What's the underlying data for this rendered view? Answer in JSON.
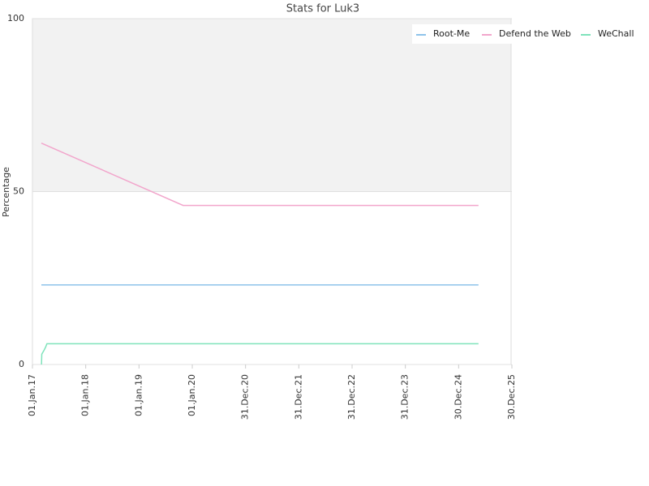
{
  "chart_data": {
    "type": "line",
    "title": "Stats for Luk3",
    "y_label": "Percentage",
    "xlim": [
      "2017-01-01",
      "2025-12-30"
    ],
    "xticks": [
      {
        "value": "2017-01-01",
        "label": "01.Jan.17"
      },
      {
        "value": "2018-01-01",
        "label": "01.Jan.18"
      },
      {
        "value": "2019-01-01",
        "label": "01.Jan.19"
      },
      {
        "value": "2020-01-01",
        "label": "01.Jan.20"
      },
      {
        "value": "2020-12-31",
        "label": "31.Dec.20"
      },
      {
        "value": "2021-12-31",
        "label": "31.Dec.21"
      },
      {
        "value": "2022-12-31",
        "label": "31.Dec.22"
      },
      {
        "value": "2023-12-31",
        "label": "31.Dec.23"
      },
      {
        "value": "2024-12-30",
        "label": "30.Dec.24"
      },
      {
        "value": "2025-12-30",
        "label": "30.Dec.25"
      }
    ],
    "ylim": [
      0,
      100
    ],
    "yticks": [
      0,
      50,
      100
    ],
    "grid": true,
    "legend": "top-right",
    "series": [
      {
        "name": "Root-Me",
        "color": "#8ec3ea",
        "x": [
          "2017-03-03",
          "2025-05-15"
        ],
        "values": [
          23,
          23
        ]
      },
      {
        "name": "Defend the Web",
        "color": "#f2a6cc",
        "x": [
          "2017-03-03",
          "2019-10-30",
          "2025-05-15"
        ],
        "values": [
          64,
          46,
          46
        ]
      },
      {
        "name": "WeChall",
        "color": "#7fe3bb",
        "x": [
          "2017-03-04",
          "2017-03-06",
          "2017-03-20",
          "2017-04-01",
          "2017-04-10",
          "2025-05-15"
        ],
        "values": [
          0,
          3,
          4,
          5,
          6,
          6
        ]
      }
    ]
  }
}
